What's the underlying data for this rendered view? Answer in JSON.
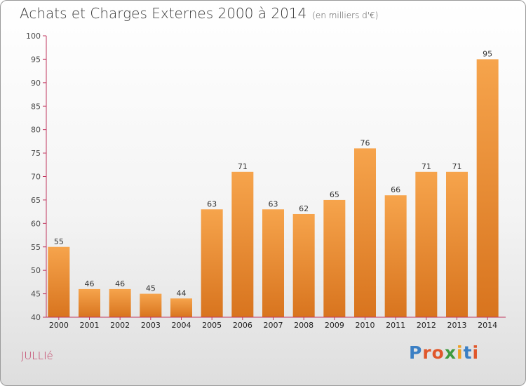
{
  "header": {
    "title": "Achats et Charges Externes 2000 à 2014",
    "unit": "(en milliers d'€)"
  },
  "footer": {
    "commune": "JULLIé",
    "logo_text": "Proxiti",
    "logo_letters": [
      "P",
      "r",
      "o",
      "x",
      "i",
      "t",
      "i"
    ],
    "logo_colors": [
      "#3b7fc4",
      "#e0572b",
      "#e0572b",
      "#3f9b3f",
      "#f0a020",
      "#3b7fc4",
      "#e0572b"
    ]
  },
  "chart_data": {
    "type": "bar",
    "categories": [
      "2000",
      "2001",
      "2002",
      "2003",
      "2004",
      "2005",
      "2006",
      "2007",
      "2008",
      "2009",
      "2010",
      "2011",
      "2012",
      "2013",
      "2014"
    ],
    "values": [
      55,
      46,
      46,
      45,
      44,
      63,
      71,
      63,
      62,
      65,
      76,
      66,
      71,
      71,
      95
    ],
    "ylim": [
      40,
      100
    ],
    "yticks": [
      40,
      45,
      50,
      55,
      60,
      65,
      70,
      75,
      80,
      85,
      90,
      95,
      100
    ],
    "grid": false,
    "bar_color_top": "#f6a44c",
    "bar_color_bottom": "#d8741e",
    "axis_color": "#c0365e"
  }
}
